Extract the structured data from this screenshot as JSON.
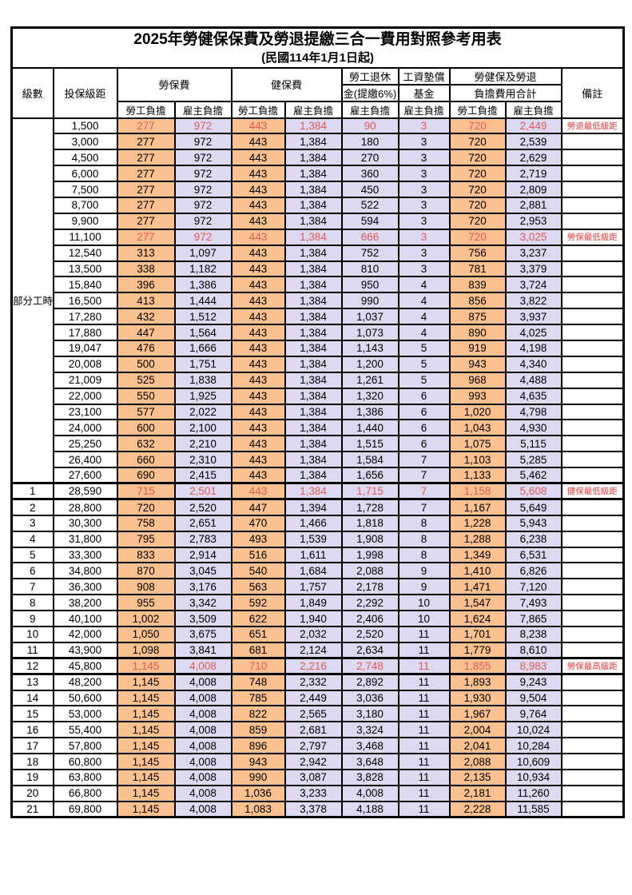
{
  "title": "2025年勞健保保費及勞退提繳三合一費用對照參考用表",
  "subtitle": "(民國114年1月1日起)",
  "colors": {
    "employee_column_bg": "#FAC08F",
    "employer_column_bg": "#DCD9F0",
    "highlight_number_text": "#E05A5A",
    "remark_text": "#E43B3B",
    "border": "#000000"
  },
  "header": {
    "level": "級數",
    "bracket": "投保級距",
    "labor_group": "勞保費",
    "health_group": "健保費",
    "pension_line1": "勞工退休",
    "pension_line2": "金(提繳6%)",
    "fund_line1": "工資墊償",
    "fund_line2": "基金",
    "total_line1": "勞健保及勞退",
    "total_line2": "負擔費用合計",
    "remark": "備註",
    "employee": "勞工負擔",
    "employer": "雇主負擔"
  },
  "part_time_label": "部分工時",
  "part_time_rowspan": 23,
  "rows": [
    {
      "level": "",
      "bracket": "1,500",
      "v": [
        "277",
        "972",
        "443",
        "1,384",
        "90",
        "3",
        "720",
        "2,449"
      ],
      "remark": "勞退最低級距",
      "red": true
    },
    {
      "level": "",
      "bracket": "3,000",
      "v": [
        "277",
        "972",
        "443",
        "1,384",
        "180",
        "3",
        "720",
        "2,539"
      ],
      "remark": ""
    },
    {
      "level": "",
      "bracket": "4,500",
      "v": [
        "277",
        "972",
        "443",
        "1,384",
        "270",
        "3",
        "720",
        "2,629"
      ],
      "remark": ""
    },
    {
      "level": "",
      "bracket": "6,000",
      "v": [
        "277",
        "972",
        "443",
        "1,384",
        "360",
        "3",
        "720",
        "2,719"
      ],
      "remark": ""
    },
    {
      "level": "",
      "bracket": "7,500",
      "v": [
        "277",
        "972",
        "443",
        "1,384",
        "450",
        "3",
        "720",
        "2,809"
      ],
      "remark": ""
    },
    {
      "level": "",
      "bracket": "8,700",
      "v": [
        "277",
        "972",
        "443",
        "1,384",
        "522",
        "3",
        "720",
        "2,881"
      ],
      "remark": ""
    },
    {
      "level": "",
      "bracket": "9,900",
      "v": [
        "277",
        "972",
        "443",
        "1,384",
        "594",
        "3",
        "720",
        "2,953"
      ],
      "remark": ""
    },
    {
      "level": "",
      "bracket": "11,100",
      "v": [
        "277",
        "972",
        "443",
        "1,384",
        "666",
        "3",
        "720",
        "3,025"
      ],
      "remark": "勞保最低級距",
      "red": true
    },
    {
      "level": "",
      "bracket": "12,540",
      "v": [
        "313",
        "1,097",
        "443",
        "1,384",
        "752",
        "3",
        "756",
        "3,237"
      ],
      "remark": ""
    },
    {
      "level": "",
      "bracket": "13,500",
      "v": [
        "338",
        "1,182",
        "443",
        "1,384",
        "810",
        "3",
        "781",
        "3,379"
      ],
      "remark": ""
    },
    {
      "level": "",
      "bracket": "15,840",
      "v": [
        "396",
        "1,386",
        "443",
        "1,384",
        "950",
        "4",
        "839",
        "3,724"
      ],
      "remark": ""
    },
    {
      "level": "",
      "bracket": "16,500",
      "v": [
        "413",
        "1,444",
        "443",
        "1,384",
        "990",
        "4",
        "856",
        "3,822"
      ],
      "remark": ""
    },
    {
      "level": "",
      "bracket": "17,280",
      "v": [
        "432",
        "1,512",
        "443",
        "1,384",
        "1,037",
        "4",
        "875",
        "3,937"
      ],
      "remark": ""
    },
    {
      "level": "",
      "bracket": "17,880",
      "v": [
        "447",
        "1,564",
        "443",
        "1,384",
        "1,073",
        "4",
        "890",
        "4,025"
      ],
      "remark": ""
    },
    {
      "level": "",
      "bracket": "19,047",
      "v": [
        "476",
        "1,666",
        "443",
        "1,384",
        "1,143",
        "5",
        "919",
        "4,198"
      ],
      "remark": ""
    },
    {
      "level": "",
      "bracket": "20,008",
      "v": [
        "500",
        "1,751",
        "443",
        "1,384",
        "1,200",
        "5",
        "943",
        "4,340"
      ],
      "remark": ""
    },
    {
      "level": "",
      "bracket": "21,009",
      "v": [
        "525",
        "1,838",
        "443",
        "1,384",
        "1,261",
        "5",
        "968",
        "4,488"
      ],
      "remark": ""
    },
    {
      "level": "",
      "bracket": "22,000",
      "v": [
        "550",
        "1,925",
        "443",
        "1,384",
        "1,320",
        "6",
        "993",
        "4,635"
      ],
      "remark": ""
    },
    {
      "level": "",
      "bracket": "23,100",
      "v": [
        "577",
        "2,022",
        "443",
        "1,384",
        "1,386",
        "6",
        "1,020",
        "4,798"
      ],
      "remark": ""
    },
    {
      "level": "",
      "bracket": "24,000",
      "v": [
        "600",
        "2,100",
        "443",
        "1,384",
        "1,440",
        "6",
        "1,043",
        "4,930"
      ],
      "remark": ""
    },
    {
      "level": "",
      "bracket": "25,250",
      "v": [
        "632",
        "2,210",
        "443",
        "1,384",
        "1,515",
        "6",
        "1,075",
        "5,115"
      ],
      "remark": ""
    },
    {
      "level": "",
      "bracket": "26,400",
      "v": [
        "660",
        "2,310",
        "443",
        "1,384",
        "1,584",
        "7",
        "1,103",
        "5,285"
      ],
      "remark": ""
    },
    {
      "level": "",
      "bracket": "27,600",
      "v": [
        "690",
        "2,415",
        "443",
        "1,384",
        "1,656",
        "7",
        "1,133",
        "5,462"
      ],
      "remark": ""
    },
    {
      "level": "1",
      "bracket": "28,590",
      "v": [
        "715",
        "2,501",
        "443",
        "1,384",
        "1,715",
        "7",
        "1,158",
        "5,608"
      ],
      "remark": "健保最低級距",
      "red": true,
      "thick": true
    },
    {
      "level": "2",
      "bracket": "28,800",
      "v": [
        "720",
        "2,520",
        "447",
        "1,394",
        "1,728",
        "7",
        "1,167",
        "5,649"
      ],
      "remark": ""
    },
    {
      "level": "3",
      "bracket": "30,300",
      "v": [
        "758",
        "2,651",
        "470",
        "1,466",
        "1,818",
        "8",
        "1,228",
        "5,943"
      ],
      "remark": ""
    },
    {
      "level": "4",
      "bracket": "31,800",
      "v": [
        "795",
        "2,783",
        "493",
        "1,539",
        "1,908",
        "8",
        "1,288",
        "6,238"
      ],
      "remark": ""
    },
    {
      "level": "5",
      "bracket": "33,300",
      "v": [
        "833",
        "2,914",
        "516",
        "1,611",
        "1,998",
        "8",
        "1,349",
        "6,531"
      ],
      "remark": ""
    },
    {
      "level": "6",
      "bracket": "34,800",
      "v": [
        "870",
        "3,045",
        "540",
        "1,684",
        "2,088",
        "9",
        "1,410",
        "6,826"
      ],
      "remark": ""
    },
    {
      "level": "7",
      "bracket": "36,300",
      "v": [
        "908",
        "3,176",
        "563",
        "1,757",
        "2,178",
        "9",
        "1,471",
        "7,120"
      ],
      "remark": ""
    },
    {
      "level": "8",
      "bracket": "38,200",
      "v": [
        "955",
        "3,342",
        "592",
        "1,849",
        "2,292",
        "10",
        "1,547",
        "7,493"
      ],
      "remark": ""
    },
    {
      "level": "9",
      "bracket": "40,100",
      "v": [
        "1,002",
        "3,509",
        "622",
        "1,940",
        "2,406",
        "10",
        "1,624",
        "7,865"
      ],
      "remark": ""
    },
    {
      "level": "10",
      "bracket": "42,000",
      "v": [
        "1,050",
        "3,675",
        "651",
        "2,032",
        "2,520",
        "11",
        "1,701",
        "8,238"
      ],
      "remark": ""
    },
    {
      "level": "11",
      "bracket": "43,900",
      "v": [
        "1,098",
        "3,841",
        "681",
        "2,124",
        "2,634",
        "11",
        "1,779",
        "8,610"
      ],
      "remark": ""
    },
    {
      "level": "12",
      "bracket": "45,800",
      "v": [
        "1,145",
        "4,008",
        "710",
        "2,216",
        "2,748",
        "11",
        "1,855",
        "8,983"
      ],
      "remark": "勞保最高級距",
      "red": true,
      "thick": true
    },
    {
      "level": "13",
      "bracket": "48,200",
      "v": [
        "1,145",
        "4,008",
        "748",
        "2,332",
        "2,892",
        "11",
        "1,893",
        "9,243"
      ],
      "remark": ""
    },
    {
      "level": "14",
      "bracket": "50,600",
      "v": [
        "1,145",
        "4,008",
        "785",
        "2,449",
        "3,036",
        "11",
        "1,930",
        "9,504"
      ],
      "remark": ""
    },
    {
      "level": "15",
      "bracket": "53,000",
      "v": [
        "1,145",
        "4,008",
        "822",
        "2,565",
        "3,180",
        "11",
        "1,967",
        "9,764"
      ],
      "remark": ""
    },
    {
      "level": "16",
      "bracket": "55,400",
      "v": [
        "1,145",
        "4,008",
        "859",
        "2,681",
        "3,324",
        "11",
        "2,004",
        "10,024"
      ],
      "remark": ""
    },
    {
      "level": "17",
      "bracket": "57,800",
      "v": [
        "1,145",
        "4,008",
        "896",
        "2,797",
        "3,468",
        "11",
        "2,041",
        "10,284"
      ],
      "remark": ""
    },
    {
      "level": "18",
      "bracket": "60,800",
      "v": [
        "1,145",
        "4,008",
        "943",
        "2,942",
        "3,648",
        "11",
        "2,088",
        "10,609"
      ],
      "remark": ""
    },
    {
      "level": "19",
      "bracket": "63,800",
      "v": [
        "1,145",
        "4,008",
        "990",
        "3,087",
        "3,828",
        "11",
        "2,135",
        "10,934"
      ],
      "remark": ""
    },
    {
      "level": "20",
      "bracket": "66,800",
      "v": [
        "1,145",
        "4,008",
        "1,036",
        "3,233",
        "4,008",
        "11",
        "2,181",
        "11,260"
      ],
      "remark": ""
    },
    {
      "level": "21",
      "bracket": "69,800",
      "v": [
        "1,145",
        "4,008",
        "1,083",
        "3,378",
        "4,188",
        "11",
        "2,228",
        "11,585"
      ],
      "remark": ""
    }
  ]
}
